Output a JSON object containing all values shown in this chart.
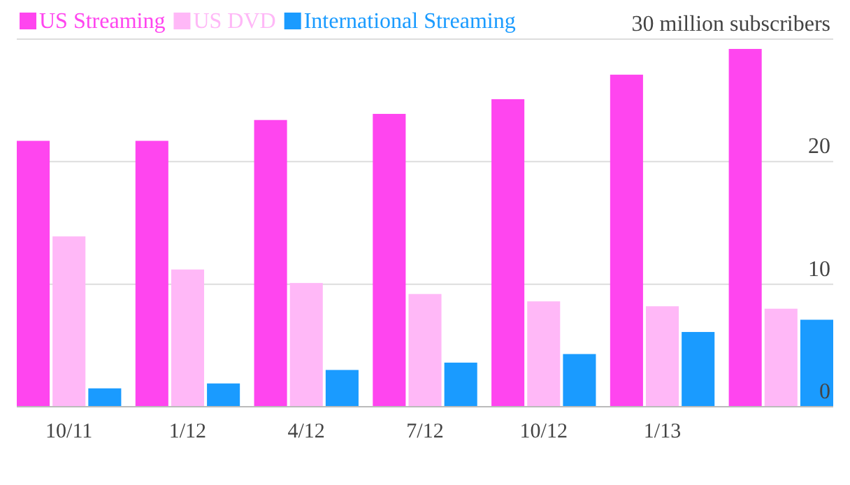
{
  "chart_data": {
    "type": "bar",
    "categories": [
      "10/11",
      "1/12",
      "4/12",
      "7/12",
      "10/12",
      "1/13",
      null
    ],
    "series": [
      {
        "name": "US Streaming",
        "color": "#ff45ef",
        "values": [
          21.7,
          21.7,
          23.4,
          23.9,
          25.1,
          27.1,
          29.2
        ]
      },
      {
        "name": "US DVD",
        "color": "#ffb8f7",
        "values": [
          13.9,
          11.2,
          10.1,
          9.2,
          8.6,
          8.2,
          8.0
        ]
      },
      {
        "name": "International Streaming",
        "color": "#1a9bff",
        "values": [
          1.5,
          1.9,
          3.0,
          3.6,
          4.3,
          6.1,
          7.1
        ]
      }
    ],
    "ylim": [
      0,
      30
    ],
    "yticks": [
      0,
      10,
      20,
      {
        "value": 30,
        "label": "30 million subscribers"
      }
    ],
    "grid": "y",
    "legend": "top left"
  }
}
